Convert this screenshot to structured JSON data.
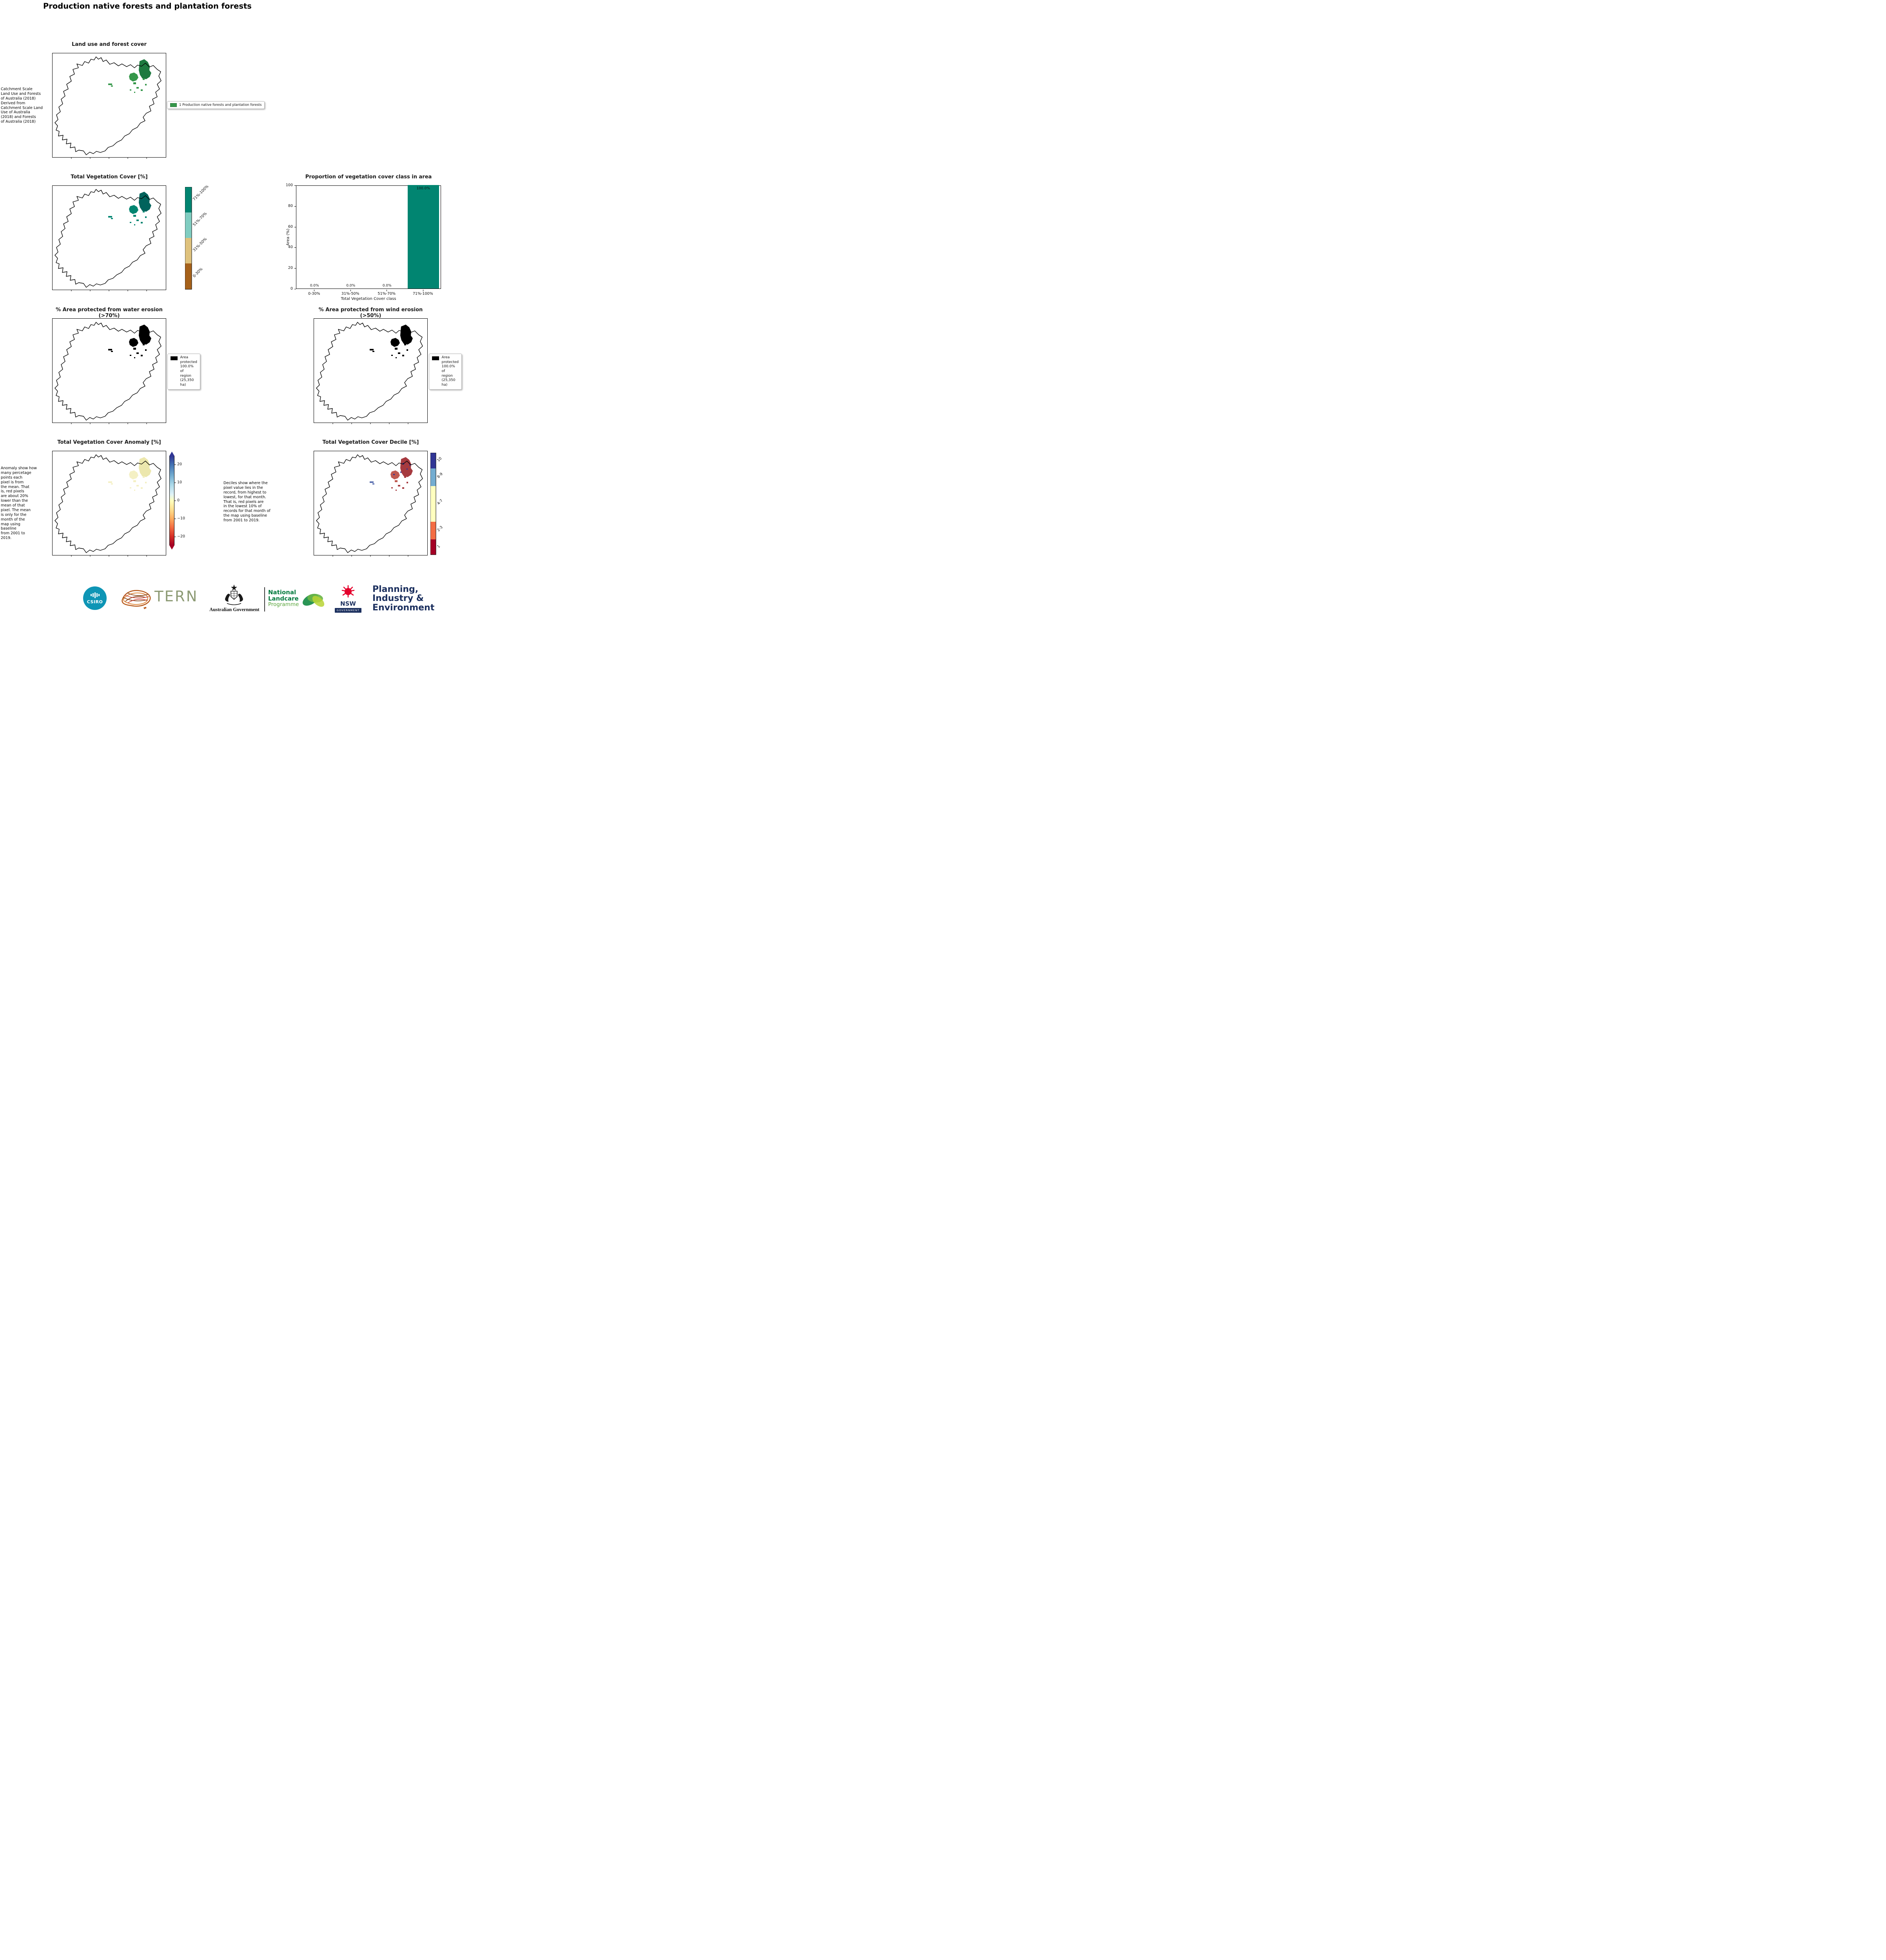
{
  "page": {
    "title": "Production native forests and plantation forests"
  },
  "colors": {
    "forest_green": "#35974a",
    "veg_class_0_30": "#a6611a",
    "veg_class_31_50": "#dfc27d",
    "veg_class_51_70": "#80cdc1",
    "veg_class_71_100": "#018571",
    "protected_black": "#000000",
    "anomaly_pos": "#313695",
    "anomaly_zero": "#ffffbf",
    "anomaly_neg": "#a50026",
    "decile_10": "#313695",
    "decile_8_9": "#74add1",
    "decile_4_7": "#ffffbf",
    "decile_2_3": "#f46d43",
    "decile_1": "#a50026"
  },
  "land_use": {
    "title": "Land use and forest cover",
    "caption": " Catchment Scale\nLand Use and Forests\nof Australia (2018)\nDerived from\nCatchment Scale Land\nUse of Australia\n(2018) and Forests\nof Australia (2018)",
    "legend_label": "1 Production native forests and plantation forests"
  },
  "veg_cover": {
    "title": "Total Vegetation Cover [%]",
    "colorbar_labels": [
      "71%-100%",
      "51%-70%",
      "31%-50%",
      "0-30%"
    ]
  },
  "water_erosion": {
    "title": "% Area protected from water erosion (>70%)",
    "legend_label": "Area\nprotected\n100.0% of\nregion\n(25,350\nha)"
  },
  "wind_erosion": {
    "title": "% Area protected from wind erosion (>50%)",
    "legend_label": "Area\nprotected\n100.0% of\nregion\n(25,350\nha)"
  },
  "anomaly": {
    "title": "Total Vegetation Cover Anomaly [%]",
    "caption": "Anomaly show how\nmany percetage\npoints each\npixel is from\nthe mean. That\nis, red pixels\nare about 20%\nlower than the\nmean of that\npixel. The mean\nis only for the\nmonth of the\nmap using\nbaseline\nfrom 2001 to\n2019.",
    "ticks": [
      "20",
      "10",
      "0",
      "−10",
      "−20"
    ]
  },
  "decile": {
    "title": "Total Vegetation Cover Decile [%]",
    "caption": "Deciles show where the\npixel value lies in the\nrecord, from highest to\nlowest, for that month.\nThat is, red pixels are\nin the lowest 10% of\nrecords for that month of\nthe map using baseline\nfrom 2001 to 2019.",
    "colorbar_labels": [
      "10",
      "8-9",
      "4-7",
      "2-3",
      "1"
    ]
  },
  "chart_data": {
    "type": "bar",
    "title": "Proportion of vegetation cover class in area",
    "categories": [
      "0-30%",
      "31%-50%",
      "51%-70%",
      "71%-100%"
    ],
    "values": [
      0.0,
      0.0,
      0.0,
      100.0
    ],
    "value_labels": [
      "0.0%",
      "0.0%",
      "0.0%",
      "100.0%"
    ],
    "xlabel": "Total Vegetation Cover class",
    "ylabel": "Area (%)",
    "ylim": [
      0,
      100
    ],
    "yticks": [
      0,
      20,
      40,
      60,
      80,
      100
    ],
    "bar_color": "#018571",
    "grid": false,
    "legend": "none"
  },
  "footer": {
    "csiro": "CSIRO",
    "tern": "TERN",
    "aus_gov": "Australian Government",
    "landcare_1": "National",
    "landcare_2": "Landcare",
    "landcare_3": "Programme",
    "nsw": "NSW",
    "nsw_gov": "GOVERNMENT",
    "dept_1": "Planning,",
    "dept_2": "Industry &",
    "dept_3": "Environment"
  }
}
